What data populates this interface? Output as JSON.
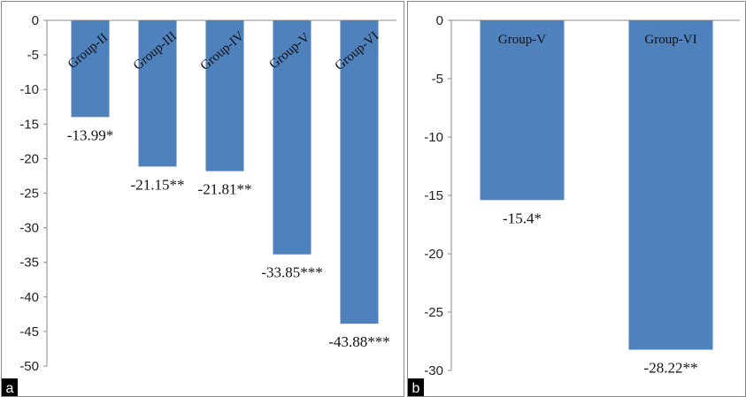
{
  "chart_data": [
    {
      "panel": "a",
      "type": "bar",
      "categories": [
        "Group-II",
        "Group-III",
        "Group-IV",
        "Group-V",
        "Group-VI"
      ],
      "values": [
        -13.99,
        -21.15,
        -21.81,
        -33.85,
        -43.88
      ],
      "significance": [
        "*",
        "**",
        "**",
        "***",
        "***"
      ],
      "ylim": [
        -50,
        0
      ],
      "yticks": [
        0,
        -5,
        -10,
        -15,
        -20,
        -25,
        -30,
        -35,
        -40,
        -45,
        -50
      ],
      "color": "#4f81bd",
      "grid": false
    },
    {
      "panel": "b",
      "type": "bar",
      "categories": [
        "Group-V",
        "Group-VI"
      ],
      "values": [
        -15.4,
        -28.22
      ],
      "significance": [
        "*",
        "**"
      ],
      "ylim": [
        -30,
        0
      ],
      "yticks": [
        0,
        -5,
        -10,
        -15,
        -20,
        -25,
        -30
      ],
      "color": "#4f81bd",
      "grid": false
    }
  ]
}
